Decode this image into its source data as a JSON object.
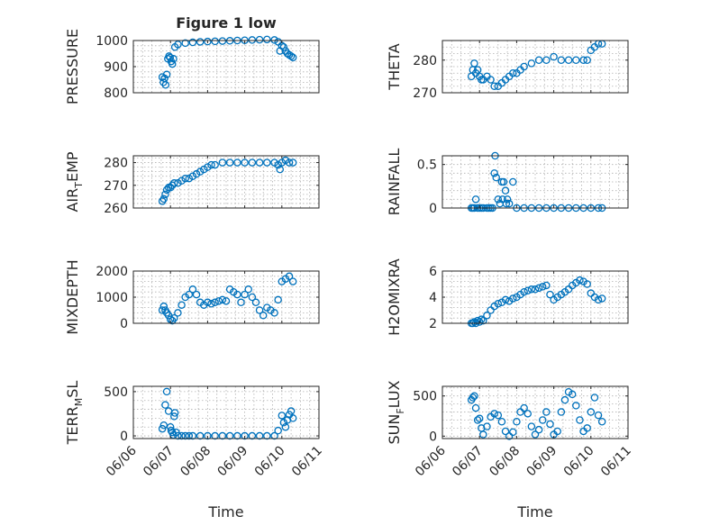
{
  "figure": {
    "title": "Figure 1 low",
    "background": "#ffffff",
    "marker_color": "#0072BD"
  },
  "chart_data": [
    {
      "type": "scatter",
      "title": "Figure 1 low",
      "ylabel": "PRESSURE",
      "ylabel_sub": null,
      "xlim": [
        "06/06",
        "06/11"
      ],
      "ylim": [
        800,
        1000
      ],
      "yticks": [
        800,
        900,
        1000
      ],
      "grid": true,
      "x_ticks": [
        "06/06",
        "06/07",
        "06/08",
        "06/09",
        "06/10",
        "06/11"
      ],
      "x": [
        0.78,
        0.81,
        0.84,
        0.87,
        0.9,
        0.93,
        0.96,
        0.99,
        1.02,
        1.05,
        1.08,
        1.12,
        1.2,
        1.4,
        1.6,
        1.8,
        2.0,
        2.2,
        2.4,
        2.6,
        2.8,
        3.0,
        3.2,
        3.4,
        3.6,
        3.8,
        3.9,
        3.95,
        4.0,
        4.05,
        4.1,
        4.15,
        4.2,
        4.25,
        4.3
      ],
      "y": [
        860,
        840,
        855,
        830,
        870,
        930,
        940,
        935,
        920,
        910,
        930,
        975,
        985,
        990,
        993,
        995,
        996,
        997,
        998,
        999,
        1000,
        1001,
        1002,
        1003,
        1004,
        1002,
        995,
        960,
        980,
        975,
        960,
        950,
        945,
        940,
        935
      ]
    },
    {
      "type": "scatter",
      "ylabel": "THETA",
      "ylabel_sub": null,
      "xlim": [
        "06/06",
        "06/11"
      ],
      "ylim": [
        270,
        286
      ],
      "yticks": [
        270,
        280
      ],
      "grid": true,
      "x_ticks": [
        "06/06",
        "06/07",
        "06/08",
        "06/09",
        "06/10",
        "06/11"
      ],
      "x": [
        0.78,
        0.82,
        0.86,
        0.9,
        0.95,
        1.0,
        1.05,
        1.1,
        1.2,
        1.3,
        1.4,
        1.5,
        1.6,
        1.7,
        1.8,
        1.9,
        2.0,
        2.1,
        2.2,
        2.4,
        2.6,
        2.8,
        3.0,
        3.2,
        3.4,
        3.6,
        3.8,
        3.9,
        4.0,
        4.1,
        4.2,
        4.3
      ],
      "y": [
        275,
        277,
        279,
        276,
        277,
        275,
        274,
        274,
        275,
        274,
        272,
        272,
        273,
        274,
        275,
        276,
        276,
        277,
        278,
        279,
        280,
        280,
        281,
        280,
        280,
        280,
        280,
        280,
        283,
        284,
        285,
        285
      ]
    },
    {
      "type": "scatter",
      "ylabel": "AIR",
      "ylabel_sub": "T",
      "ylabel_after": "EMP",
      "xlim": [
        "06/06",
        "06/11"
      ],
      "ylim": [
        260,
        283
      ],
      "yticks": [
        260,
        270,
        280
      ],
      "grid": true,
      "x_ticks": [
        "06/06",
        "06/07",
        "06/08",
        "06/09",
        "06/10",
        "06/11"
      ],
      "x": [
        0.78,
        0.82,
        0.86,
        0.9,
        0.95,
        1.0,
        1.05,
        1.1,
        1.2,
        1.3,
        1.4,
        1.5,
        1.6,
        1.7,
        1.8,
        1.9,
        2.0,
        2.1,
        2.2,
        2.4,
        2.6,
        2.8,
        3.0,
        3.2,
        3.4,
        3.6,
        3.8,
        3.9,
        3.95,
        4.0,
        4.1,
        4.2,
        4.3
      ],
      "y": [
        263,
        264,
        266,
        268,
        269,
        269,
        270,
        271,
        271,
        272,
        273,
        273,
        274,
        275,
        276,
        277,
        278,
        279,
        279,
        280,
        280,
        280,
        280,
        280,
        280,
        280,
        280,
        279,
        277,
        280,
        281,
        280,
        280
      ]
    },
    {
      "type": "scatter",
      "ylabel": "RAINFALL",
      "ylabel_sub": null,
      "xlim": [
        "06/06",
        "06/11"
      ],
      "ylim": [
        0,
        0.6
      ],
      "yticks": [
        0,
        0.5
      ],
      "grid": true,
      "x_ticks": [
        "06/06",
        "06/07",
        "06/08",
        "06/09",
        "06/10",
        "06/11"
      ],
      "x": [
        0.78,
        0.82,
        0.86,
        0.9,
        0.95,
        1.0,
        1.05,
        1.1,
        1.2,
        1.25,
        1.3,
        1.35,
        1.4,
        1.42,
        1.45,
        1.5,
        1.55,
        1.6,
        1.62,
        1.65,
        1.7,
        1.72,
        1.75,
        1.8,
        1.9,
        2.0,
        2.2,
        2.4,
        2.6,
        2.8,
        3.0,
        3.2,
        3.4,
        3.6,
        3.8,
        4.0,
        4.2,
        4.3
      ],
      "y": [
        0,
        0,
        0,
        0.1,
        0,
        0,
        0,
        0,
        0,
        0,
        0,
        0,
        0.4,
        0.6,
        0.35,
        0.1,
        0.05,
        0.3,
        0.1,
        0.3,
        0.2,
        0.05,
        0.1,
        0.05,
        0.3,
        0,
        0,
        0,
        0,
        0,
        0,
        0,
        0,
        0,
        0,
        0,
        0,
        0
      ]
    },
    {
      "type": "scatter",
      "ylabel": "MIXDEPTH",
      "ylabel_sub": null,
      "xlim": [
        "06/06",
        "06/11"
      ],
      "ylim": [
        0,
        2000
      ],
      "yticks": [
        0,
        1000,
        2000
      ],
      "grid": true,
      "x_ticks": [
        "06/06",
        "06/07",
        "06/08",
        "06/09",
        "06/10",
        "06/11"
      ],
      "x": [
        0.78,
        0.82,
        0.86,
        0.9,
        0.95,
        1.0,
        1.05,
        1.1,
        1.2,
        1.3,
        1.4,
        1.5,
        1.6,
        1.7,
        1.8,
        1.9,
        2.0,
        2.1,
        2.2,
        2.3,
        2.4,
        2.5,
        2.6,
        2.7,
        2.8,
        2.9,
        3.0,
        3.1,
        3.2,
        3.3,
        3.4,
        3.5,
        3.6,
        3.7,
        3.8,
        3.9,
        4.0,
        4.1,
        4.2,
        4.3
      ],
      "y": [
        500,
        650,
        500,
        400,
        300,
        150,
        100,
        200,
        400,
        700,
        1000,
        1100,
        1300,
        1100,
        800,
        700,
        800,
        750,
        800,
        850,
        900,
        850,
        1300,
        1200,
        1100,
        800,
        1100,
        1300,
        1000,
        800,
        500,
        300,
        600,
        500,
        400,
        900,
        1600,
        1700,
        1800,
        1600
      ]
    },
    {
      "type": "scatter",
      "ylabel": "H2OMIXRA",
      "ylabel_sub": null,
      "xlim": [
        "06/06",
        "06/11"
      ],
      "ylim": [
        2,
        6
      ],
      "yticks": [
        2,
        4,
        6
      ],
      "grid": true,
      "x_ticks": [
        "06/06",
        "06/07",
        "06/08",
        "06/09",
        "06/10",
        "06/11"
      ],
      "x": [
        0.78,
        0.82,
        0.86,
        0.9,
        0.95,
        1.0,
        1.05,
        1.1,
        1.2,
        1.3,
        1.4,
        1.5,
        1.6,
        1.7,
        1.8,
        1.9,
        2.0,
        2.1,
        2.2,
        2.3,
        2.4,
        2.5,
        2.6,
        2.7,
        2.8,
        2.9,
        3.0,
        3.1,
        3.2,
        3.3,
        3.4,
        3.5,
        3.6,
        3.7,
        3.8,
        3.9,
        4.0,
        4.1,
        4.2,
        4.3
      ],
      "y": [
        2.0,
        2.0,
        2.1,
        2.0,
        2.2,
        2.1,
        2.3,
        2.2,
        2.6,
        3.0,
        3.3,
        3.5,
        3.6,
        3.8,
        3.7,
        3.9,
        4.0,
        4.2,
        4.4,
        4.5,
        4.6,
        4.6,
        4.7,
        4.8,
        4.9,
        4.2,
        3.8,
        4.0,
        4.2,
        4.4,
        4.6,
        4.9,
        5.1,
        5.3,
        5.2,
        5.0,
        4.3,
        4.0,
        3.8,
        3.9
      ]
    },
    {
      "type": "scatter",
      "ylabel": "TERR",
      "ylabel_sub": "M",
      "ylabel_after": "SL",
      "xlim": [
        "06/06",
        "06/11"
      ],
      "ylim": [
        -30,
        560
      ],
      "yticks": [
        0,
        500
      ],
      "grid": true,
      "x_ticks": [
        "06/06",
        "06/07",
        "06/08",
        "06/09",
        "06/10",
        "06/11"
      ],
      "x": [
        0.78,
        0.82,
        0.86,
        0.9,
        0.95,
        1.0,
        1.02,
        1.05,
        1.08,
        1.1,
        1.12,
        1.15,
        1.2,
        1.3,
        1.4,
        1.5,
        1.6,
        1.8,
        2.0,
        2.2,
        2.4,
        2.6,
        2.8,
        3.0,
        3.2,
        3.4,
        3.6,
        3.8,
        3.9,
        4.0,
        4.05,
        4.1,
        4.15,
        4.2,
        4.25,
        4.3
      ],
      "y": [
        80,
        120,
        350,
        500,
        280,
        100,
        60,
        40,
        10,
        220,
        260,
        40,
        0,
        0,
        0,
        0,
        0,
        0,
        0,
        0,
        0,
        0,
        0,
        0,
        0,
        0,
        0,
        0,
        60,
        230,
        150,
        100,
        180,
        240,
        280,
        200
      ]
    },
    {
      "type": "scatter",
      "ylabel": "SUN",
      "ylabel_sub": "F",
      "ylabel_after": "LUX",
      "xlim": [
        "06/06",
        "06/11"
      ],
      "ylim": [
        -30,
        620
      ],
      "yticks": [
        0,
        500
      ],
      "grid": true,
      "x_ticks": [
        "06/06",
        "06/07",
        "06/08",
        "06/09",
        "06/10",
        "06/11"
      ],
      "x": [
        0.78,
        0.82,
        0.86,
        0.9,
        0.95,
        1.0,
        1.05,
        1.1,
        1.2,
        1.3,
        1.4,
        1.5,
        1.6,
        1.7,
        1.8,
        1.9,
        2.0,
        2.1,
        2.2,
        2.3,
        2.4,
        2.5,
        2.6,
        2.7,
        2.8,
        2.9,
        3.0,
        3.1,
        3.2,
        3.3,
        3.4,
        3.5,
        3.6,
        3.7,
        3.8,
        3.9,
        4.0,
        4.1,
        4.2,
        4.3
      ],
      "y": [
        450,
        480,
        500,
        350,
        200,
        220,
        100,
        20,
        120,
        240,
        280,
        260,
        180,
        60,
        0,
        50,
        180,
        300,
        350,
        280,
        120,
        20,
        80,
        200,
        300,
        150,
        20,
        60,
        300,
        450,
        550,
        520,
        380,
        200,
        60,
        100,
        300,
        480,
        260,
        180
      ]
    }
  ],
  "shared": {
    "xlabel": "Time"
  }
}
